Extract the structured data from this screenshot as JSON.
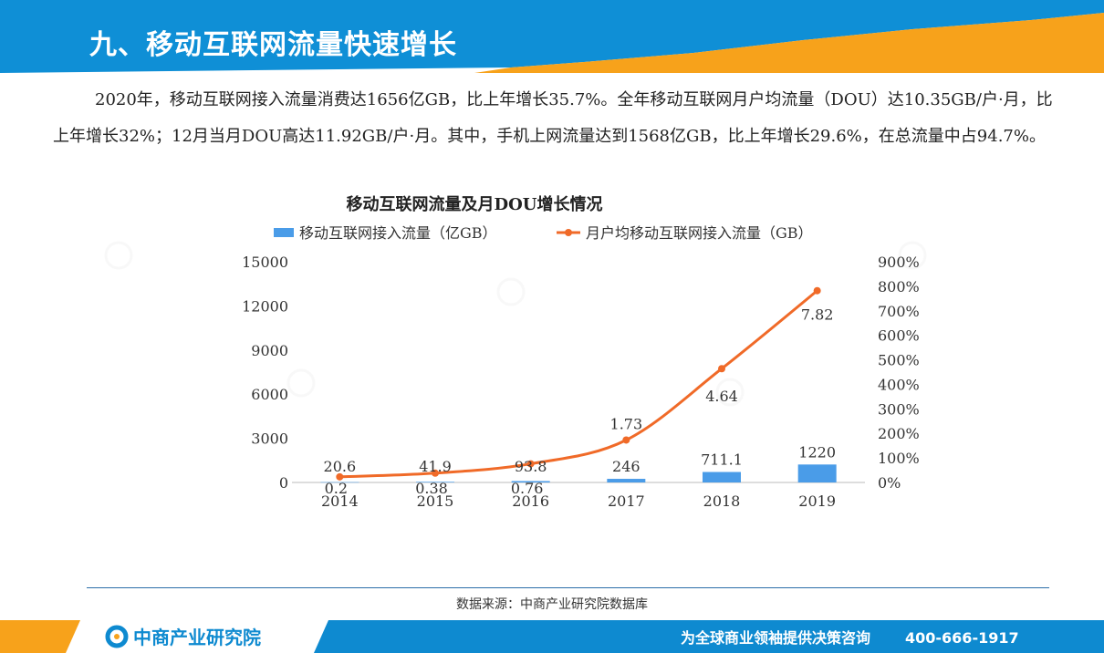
{
  "header": {
    "title": "九、移动互联网流量快速增长"
  },
  "intro": {
    "text": "2020年，移动互联网接入流量消费达1656亿GB，比上年增长35.7%。全年移动互联网月户均流量（DOU）达10.35GB/户·月，比上年增长32%；12月当月DOU高达11.92GB/户·月。其中，手机上网流量达到1568亿GB，比上年增长29.6%，在总流量中占94.7%。"
  },
  "chart_data": {
    "type": "bar",
    "title": "移动互联网流量及月DOU增长情况",
    "categories": [
      "2014",
      "2015",
      "2016",
      "2017",
      "2018",
      "2019"
    ],
    "series": [
      {
        "name": "移动互联网接入流量（亿GB）",
        "type": "bar",
        "axis": "left",
        "color": "#4a9ce8",
        "values": [
          20.6,
          41.9,
          93.8,
          246,
          711.1,
          1220
        ],
        "labels": [
          "20.6",
          "41.9",
          "93.8",
          "246",
          "711.1",
          "1220"
        ]
      },
      {
        "name": "月户均移动互联网接入流量（GB）",
        "type": "line",
        "axis": "right",
        "color": "#f06a28",
        "values": [
          0.2,
          0.38,
          0.76,
          1.73,
          4.64,
          7.82
        ],
        "labels": [
          "0.2",
          "0.38",
          "0.76",
          "1.73",
          "4.64",
          "7.82"
        ],
        "plotted_percent": [
          23,
          38,
          76,
          173,
          464,
          782
        ]
      }
    ],
    "left_axis": {
      "ylim": [
        0,
        15000
      ],
      "ticks": [
        "0",
        "3000",
        "6000",
        "9000",
        "12000",
        "15000"
      ]
    },
    "right_axis": {
      "ylim": [
        0,
        900
      ],
      "ticks": [
        "0%",
        "100%",
        "200%",
        "300%",
        "400%",
        "500%",
        "600%",
        "700%",
        "800%",
        "900%"
      ]
    },
    "legend": "top",
    "grid": false
  },
  "source": {
    "label": "数据来源：中商产业研究院数据库"
  },
  "footer": {
    "brand": "中商产业研究院",
    "slogan": "为全球商业领袖提供决策咨询",
    "phone": "400-666-1917"
  },
  "colors": {
    "header_blue": "#0f8fd6",
    "accent_orange": "#f7a21b",
    "bar_blue": "#4a9ce8",
    "line_orange": "#f06a28",
    "footer_blue": "#0e8ad0"
  }
}
